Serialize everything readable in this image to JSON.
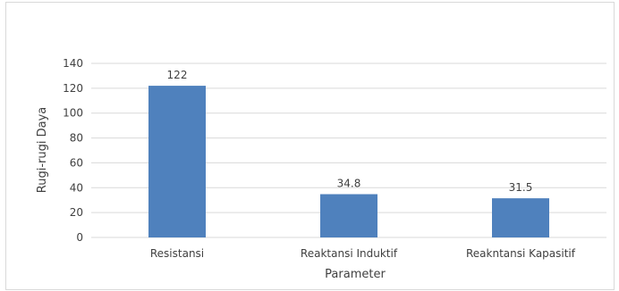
{
  "chart_data": {
    "type": "bar",
    "categories": [
      "Resistansi",
      "Reaktansi Induktif",
      "Reakntansi Kapasitif"
    ],
    "values": [
      122,
      34.8,
      31.5
    ],
    "data_labels": [
      "122",
      "34.8",
      "31.5"
    ],
    "title": "",
    "xlabel": "Parameter",
    "ylabel": "Rugi-rugi Daya",
    "ylim": [
      0,
      140
    ],
    "yticks": [
      0,
      20,
      40,
      60,
      80,
      100,
      120,
      140
    ],
    "grid": true,
    "legend": "none",
    "colors": {
      "bar": "#4f81bd",
      "grid": "#d9d9d9",
      "text": "#404040"
    }
  }
}
